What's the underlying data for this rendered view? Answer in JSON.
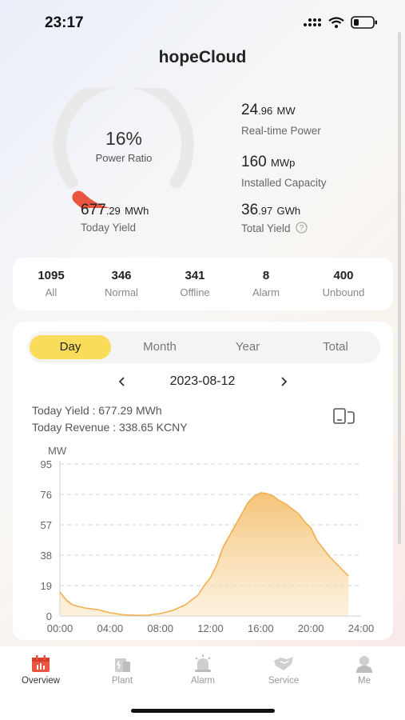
{
  "status": {
    "time": "23:17"
  },
  "header": {
    "title": "hopeCloud"
  },
  "summary": {
    "gauge_value": "16%",
    "gauge_label": "Power Ratio",
    "gauge_fraction": 0.16,
    "realtime_power": {
      "int": "24",
      "dec": ".96",
      "unit": "MW",
      "label": "Real-time Power"
    },
    "capacity": {
      "int": "160",
      "dec": "",
      "unit": "MWp",
      "label": "Installed Capacity"
    },
    "today_yield": {
      "int": "677",
      "dec": ".29",
      "unit": "MWh",
      "label": "Today Yield"
    },
    "total_yield": {
      "int": "36",
      "dec": ".97",
      "unit": "GWh",
      "label": "Total Yield"
    }
  },
  "counts": [
    {
      "value": "1095",
      "label": "All"
    },
    {
      "value": "346",
      "label": "Normal"
    },
    {
      "value": "341",
      "label": "Offline"
    },
    {
      "value": "8",
      "label": "Alarm"
    },
    {
      "value": "400",
      "label": "Unbound"
    }
  ],
  "tabs": [
    "Day",
    "Month",
    "Year",
    "Total"
  ],
  "active_tab": "Day",
  "date": "2023-08-12",
  "info": {
    "yield": "Today Yield : 677.29 MWh",
    "revenue": "Today Revenue : 338.65 KCNY"
  },
  "chart_data": {
    "type": "area",
    "ylabel": "MW",
    "yticks": [
      "95",
      "76",
      "57",
      "38",
      "19",
      "0"
    ],
    "xticks": [
      "00:00",
      "04:00",
      "08:00",
      "12:00",
      "16:00",
      "20:00",
      "24:00"
    ],
    "ylim": [
      0,
      95
    ],
    "xlim": [
      0,
      24
    ],
    "grid": true,
    "color": "#f0b050",
    "x": [
      0,
      0.5,
      1,
      2,
      3,
      4,
      5,
      6,
      7,
      8,
      9,
      10,
      10.5,
      11,
      11.5,
      12,
      12.5,
      13,
      13.5,
      14,
      14.5,
      15,
      15.5,
      16,
      16.5,
      17,
      17.5,
      18,
      18.5,
      19,
      19.5,
      20,
      20.5,
      21,
      21.5,
      22,
      22.5,
      23
    ],
    "values": [
      15,
      10,
      7,
      5,
      4,
      2,
      0.8,
      0.4,
      0.5,
      1.5,
      3.5,
      7,
      10,
      13,
      19,
      24,
      32,
      43,
      50,
      57,
      64,
      71,
      75,
      77,
      76.5,
      75,
      72,
      70,
      67,
      64,
      59,
      55,
      47,
      42,
      37,
      33,
      29,
      25
    ]
  },
  "nav": [
    {
      "label": "Overview",
      "icon": "overview-icon",
      "active": true
    },
    {
      "label": "Plant",
      "icon": "plant-icon",
      "active": false
    },
    {
      "label": "Alarm",
      "icon": "alarm-icon",
      "active": false
    },
    {
      "label": "Service",
      "icon": "service-icon",
      "active": false
    },
    {
      "label": "Me",
      "icon": "me-icon",
      "active": false
    }
  ],
  "colors": {
    "accent": "#f8dc5a",
    "gauge": "#ea5540",
    "area": "#f0b050"
  }
}
